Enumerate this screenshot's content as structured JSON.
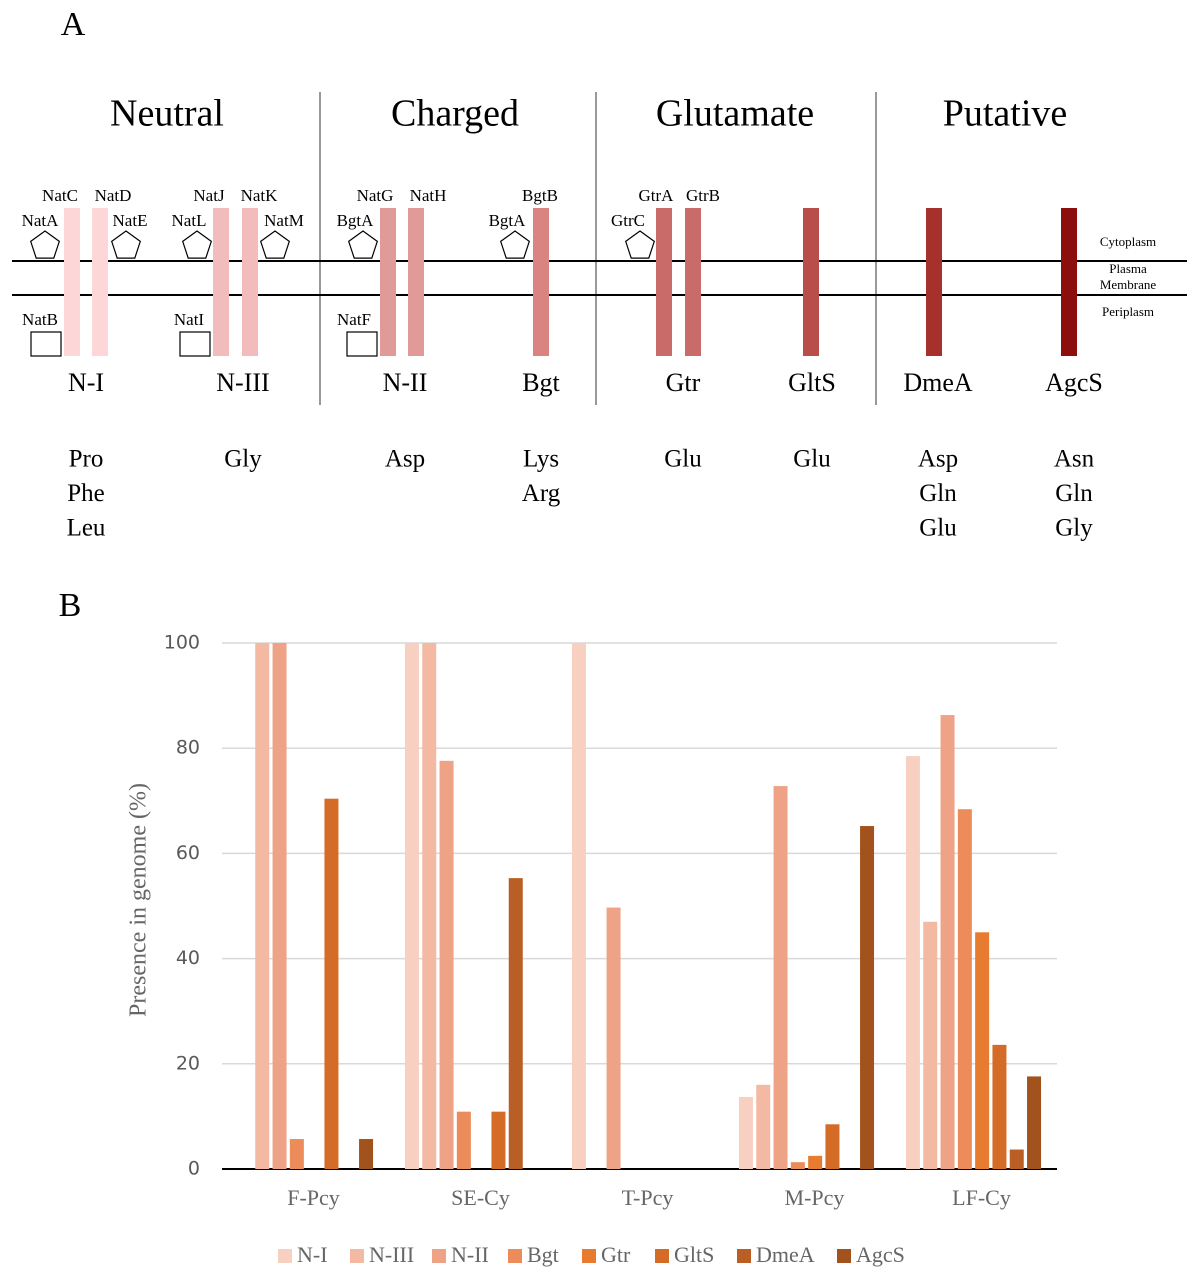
{
  "diagram": {
    "label": "A",
    "groups": [
      "Neutral",
      "Charged",
      "Glutamate",
      "Putative"
    ],
    "compartments": {
      "top": "Cytoplasm",
      "membrane": [
        "Plasma",
        "Membrane"
      ],
      "bottom": "Periplasm"
    },
    "systems": [
      {
        "name": "N-I",
        "color": "#fdd7d7",
        "substrates": [
          "Pro",
          "Phe",
          "Leu"
        ],
        "components": [
          {
            "label": "NatC",
            "shape": "bar"
          },
          {
            "label": "NatD",
            "shape": "bar"
          },
          {
            "label": "NatA",
            "shape": "pentagon"
          },
          {
            "label": "NatE",
            "shape": "pentagon"
          },
          {
            "label": "NatB",
            "shape": "square"
          }
        ]
      },
      {
        "name": "N-III",
        "color": "#f2bcbc",
        "substrates": [
          "Gly"
        ],
        "components": [
          {
            "label": "NatJ",
            "shape": "bar"
          },
          {
            "label": "NatK",
            "shape": "bar"
          },
          {
            "label": "NatL",
            "shape": "pentagon"
          },
          {
            "label": "NatM",
            "shape": "pentagon"
          },
          {
            "label": "NatI",
            "shape": "square"
          }
        ]
      },
      {
        "name": "N-II",
        "color": "#e09b98",
        "substrates": [
          "Asp"
        ],
        "components": [
          {
            "label": "NatG",
            "shape": "bar"
          },
          {
            "label": "NatH",
            "shape": "bar"
          },
          {
            "label": "BgtA",
            "shape": "pentagon"
          },
          {
            "label": "NatF",
            "shape": "square"
          }
        ]
      },
      {
        "name": "Bgt",
        "color": "#d98480",
        "substrates": [
          "Lys",
          "Arg"
        ],
        "components": [
          {
            "label": "BgtB",
            "shape": "bar"
          },
          {
            "label": "BgtA",
            "shape": "pentagon"
          }
        ]
      },
      {
        "name": "Gtr",
        "color": "#c96b68",
        "substrates": [
          "Glu"
        ],
        "components": [
          {
            "label": "GtrA",
            "shape": "bar"
          },
          {
            "label": "GtrB",
            "shape": "bar"
          },
          {
            "label": "GtrC",
            "shape": "pentagon"
          }
        ]
      },
      {
        "name": "GltS",
        "color": "#b94d49",
        "substrates": [
          "Glu"
        ],
        "components": []
      },
      {
        "name": "DmeA",
        "color": "#a6302c",
        "substrates": [
          "Asp",
          "Gln",
          "Glu"
        ],
        "components": []
      },
      {
        "name": "AgcS",
        "color": "#8c0f0e",
        "substrates": [
          "Asn",
          "Gln",
          "Gly"
        ],
        "components": []
      }
    ]
  },
  "chart_data": {
    "type": "bar",
    "panel_label": "B",
    "y_label": "Presence in genome (%)",
    "categories": [
      "F-Pcy",
      "SE-Cy",
      "T-Pcy",
      "M-Pcy",
      "LF-Cy"
    ],
    "series": [
      {
        "name": "N-I",
        "color": "#f8d0c2",
        "values": [
          0,
          100,
          100,
          13.7,
          78.5
        ]
      },
      {
        "name": "N-III",
        "color": "#f4b9a3",
        "values": [
          100,
          100,
          0,
          16,
          47
        ]
      },
      {
        "name": "N-II",
        "color": "#eea387",
        "values": [
          100,
          77.6,
          49.7,
          72.8,
          86.3
        ]
      },
      {
        "name": "Bgt",
        "color": "#ec8c5b",
        "values": [
          5.7,
          10.9,
          0,
          1.3,
          68.4
        ]
      },
      {
        "name": "Gtr",
        "color": "#e77c30",
        "values": [
          0,
          0,
          0,
          2.5,
          45
        ]
      },
      {
        "name": "GltS",
        "color": "#d46b26",
        "values": [
          70.4,
          10.9,
          0,
          8.5,
          23.6
        ]
      },
      {
        "name": "DmeA",
        "color": "#b95f25",
        "values": [
          0,
          55.3,
          0,
          0,
          3.7
        ]
      },
      {
        "name": "AgcS",
        "color": "#a2521d",
        "values": [
          5.7,
          0,
          0,
          65.2,
          17.6
        ]
      }
    ],
    "ylim": [
      0,
      100
    ],
    "yticks": [
      0,
      20,
      40,
      60,
      80,
      100
    ],
    "grid": true
  }
}
